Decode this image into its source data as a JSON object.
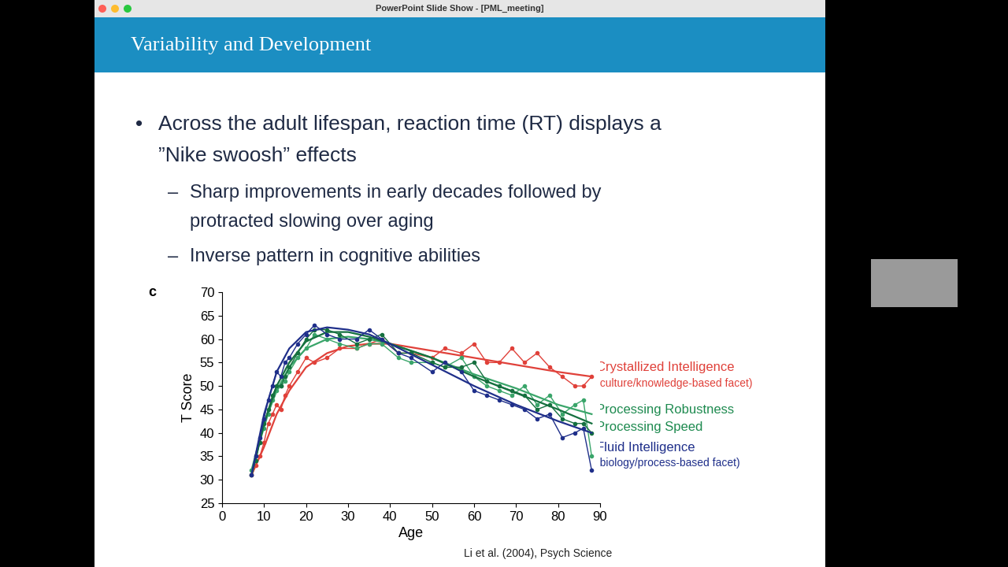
{
  "window": {
    "title": "PowerPoint Slide Show - [PML_meeting]"
  },
  "slide": {
    "title": "Variability and Development",
    "bullet": "•",
    "sub_bullet": "–",
    "bullets": [
      {
        "lines": [
          "Across the adult lifespan, reaction time (RT) displays a",
          "”Nike swoosh” effects"
        ],
        "sub": [
          {
            "lines": [
              "Sharp improvements in early decades followed by",
              "protracted slowing over aging"
            ]
          },
          {
            "lines": [
              "Inverse pattern in cognitive abilities"
            ]
          }
        ]
      }
    ],
    "source": "Li et al. (2004), Psych Science"
  },
  "chart_data": {
    "type": "line",
    "panel": "c",
    "x_label": "Age",
    "y_label": "T Score",
    "marker": "o",
    "grid": false,
    "xlim": [
      0,
      90
    ],
    "xticks": [
      0,
      10,
      20,
      30,
      40,
      50,
      60,
      70,
      80,
      90
    ],
    "ylim": [
      25,
      70
    ],
    "yticks": [
      25,
      30,
      35,
      40,
      45,
      50,
      55,
      60,
      65,
      70
    ],
    "x": [
      7,
      8,
      9,
      10,
      11,
      12,
      13,
      14,
      15,
      16,
      18,
      20,
      22,
      25,
      28,
      32,
      35,
      38,
      42,
      45,
      50,
      53,
      57,
      60,
      63,
      66,
      69,
      72,
      75,
      78,
      81,
      84,
      86,
      88
    ],
    "fit_x": [
      7,
      10,
      13,
      16,
      20,
      25,
      30,
      35,
      40,
      50,
      60,
      70,
      80,
      88
    ],
    "series": [
      {
        "name": "Crystallized Intelligence",
        "facet": "(culture/knowledge-based facet)",
        "color": "#e0413a",
        "values": [
          31,
          33,
          35,
          38,
          42,
          44,
          46,
          45,
          48,
          50,
          53,
          56,
          55,
          56,
          58,
          58,
          59,
          60,
          57,
          57,
          56,
          58,
          57,
          59,
          55,
          55,
          58,
          55,
          57,
          54,
          52,
          50,
          50,
          52
        ],
        "fit_values": [
          31,
          37,
          44,
          49,
          54,
          57,
          58.5,
          59,
          59,
          57.5,
          56,
          54.5,
          53,
          52
        ]
      },
      {
        "name": "Processing Robustness",
        "color": "#3aa56a",
        "values": [
          32,
          35,
          38,
          41,
          44,
          47,
          49,
          50,
          51,
          53,
          56,
          58,
          61,
          60,
          59,
          58,
          59,
          59,
          56,
          55,
          55,
          54,
          56,
          52,
          50,
          49,
          48,
          50,
          46,
          48,
          44,
          46,
          47,
          35
        ],
        "fit_values": [
          32,
          42,
          49,
          54,
          58,
          60,
          60.5,
          60,
          59,
          56,
          52.5,
          49.5,
          46,
          44
        ]
      },
      {
        "name": "Processing Speed",
        "color": "#15703f",
        "values": [
          31,
          34,
          38,
          42,
          45,
          48,
          50,
          50,
          52,
          54,
          57,
          60,
          62,
          62,
          61,
          59,
          60,
          61,
          57,
          57,
          55,
          54,
          54,
          55,
          51,
          50,
          49,
          48,
          45,
          46,
          43,
          42,
          42,
          40
        ],
        "fit_values": [
          31,
          42,
          50,
          55,
          59.5,
          61.5,
          61.5,
          60.5,
          59,
          56,
          52,
          48.5,
          45,
          42
        ]
      },
      {
        "name": "Fluid Intelligence",
        "facet": "(biology/process-based facet)",
        "color": "#1f2f8a",
        "values": [
          31,
          35,
          39,
          43,
          47,
          50,
          53,
          52,
          55,
          56,
          59,
          61,
          63,
          61,
          60,
          60,
          62,
          60,
          57,
          56,
          53,
          55,
          53,
          49,
          48,
          47,
          46,
          45,
          43,
          44,
          39,
          40,
          41,
          32
        ],
        "fit_values": [
          31,
          44,
          53,
          58,
          61.5,
          62.5,
          62,
          61,
          59,
          54.5,
          50,
          46,
          42.5,
          40
        ]
      }
    ]
  }
}
